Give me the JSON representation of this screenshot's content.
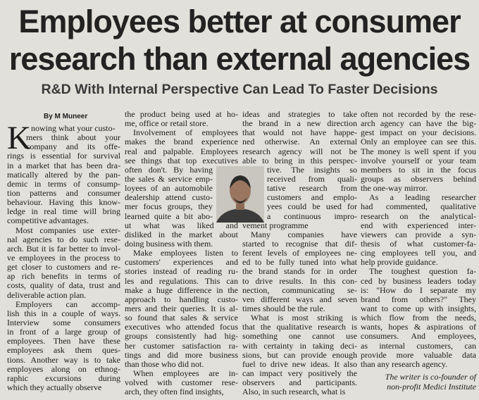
{
  "header": {
    "title": "Employees better at consumer research than external agencies",
    "subtitle": "R&D With Internal Perspective Can Lead To Faster Decisions",
    "byline": "By M Muneer"
  },
  "columns": [
    {
      "paragraphs": [
        [
          "Knowing what your custo-",
          "mers think about your",
          "company and its offe-",
          "rings is essential for survival",
          "in a market that has been dra-",
          "matically altered by the pan-",
          "demic in terms of consump-",
          "tion patterns and consumer",
          "behaviour. Having this know-",
          "ledge in real time will bring",
          "competitive advantages."
        ],
        [
          "Most companies use exter-",
          "nal agencies to do such rese-",
          "arch. But it is far better to invol-",
          "ve employees in the process to",
          "get closer to customers and re-",
          "ap rich benefits in terms of",
          "costs, quality of data, trust and",
          "deliverable action plan."
        ],
        [
          "Employers can accomp-",
          "lish this in a couple of ways.",
          "Interview some consumers",
          "in front of a large group of",
          "employees. Then have these",
          "employees ask them ques-",
          "tions. Another way is to take",
          "employees along on ethnog-",
          "raphic excursions during",
          "which they actually observe"
        ]
      ]
    },
    {
      "paragraphs": [
        [
          "the product being used at ho-",
          "me, office or retail store."
        ],
        [
          "Involvement of employees",
          "makes the brand experience",
          "real and palpable. Employees",
          "see things that top executives",
          "often don't. By having",
          "the sales & service emp-",
          "loyees of an automobile",
          "dealership attend custo-",
          "mer focus groups, they",
          "learned quite a bit abo-",
          "ut what was liked and",
          "disliked in the market about",
          "doing business with them."
        ],
        [
          "Make employees listen to",
          "customers' experiences and",
          "stories instead of reading ru-",
          "les and regulations. This can",
          "make a huge difference in the",
          "approach to handling custo-",
          "mers and their queries. It is al-",
          "so found that sales & service",
          "executives who attended focus",
          "groups consistently had hig-",
          "her customer satisfaction ra-",
          "tings and did more business",
          "than those who did not."
        ],
        [
          "When employees are in-",
          "volved with customer rese-",
          "arch, they often find insights,"
        ]
      ]
    },
    {
      "paragraphs": [
        [
          "ideas and strategies to take",
          "the brand in a new direction",
          "that would not have happe-",
          "ned otherwise. An external",
          "research agency will not be",
          "able to bring in this perspec-",
          "tive. The insights so",
          "received from quali-",
          "tative research from",
          "customers and emplo-",
          "yees could be used for",
          "a continuous impro-",
          "vement programme"
        ],
        [
          "Many companies have",
          "started to recognise that dif-",
          "ferent levels of employees ne-",
          "ed to be fully tuned into what",
          "the brand stands for in order",
          "to drive results. In this con-",
          "nection, communicating se-",
          "ven different ways and seven",
          "times should be the rule."
        ],
        [
          "What is most striking is",
          "that the qualitative research is",
          "something one cannot use",
          "with certainty in taking deci-",
          "sions, but can provide enough",
          "fuel to drive new ideas. It also",
          "can impact very positively the",
          "observers and participants.",
          "Also, in such research, what is"
        ]
      ]
    },
    {
      "paragraphs": [
        [
          "often not recorded by the rese-",
          "arch agency can have the big-",
          "gest impact on your decisions.",
          "Only an employee can see this.",
          "The money is well spent if you",
          "involve yourself or your team",
          "members to sit in the focus",
          "groups as observers behind",
          "the one-way mirror."
        ],
        [
          "As a leading researcher",
          "had commented, qualitative",
          "research on the analytical-",
          "end with experienced inter-",
          "viewers can provide a syn-",
          "thesis of what customer-fa-",
          "cing employees tell you, and",
          "help provide guidance."
        ],
        [
          "The toughest question fa-",
          "ced by business leaders today",
          "is: \"How do I separate my",
          "brand from others?\" They",
          "want to come up with insights,",
          "which flow from the needs,",
          "wants, hopes & aspirations of",
          "consumers. And employees,",
          "as internal customers, can",
          "provide more valuable data",
          "than any research agency."
        ]
      ]
    }
  ],
  "footer": {
    "lines": [
      "The writer is co-founder of",
      "non-profit Medici Institute"
    ]
  }
}
